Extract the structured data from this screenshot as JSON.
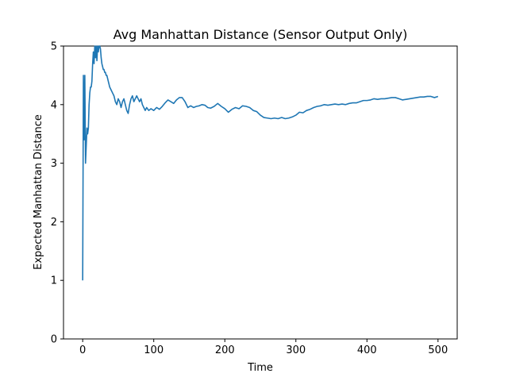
{
  "chart_data": {
    "type": "line",
    "title": "Avg Manhattan Distance (Sensor Output Only)",
    "xlabel": "Time",
    "ylabel": "Expected Manhattan Distance",
    "xlim": [
      -27,
      527
    ],
    "ylim": [
      0,
      5
    ],
    "xticks": [
      0,
      100,
      200,
      300,
      400,
      500
    ],
    "yticks": [
      0,
      1,
      2,
      3,
      4,
      5
    ],
    "grid": false,
    "line_color": "#1f77b4",
    "series": [
      {
        "values": [
          [
            0,
            1.0
          ],
          [
            1,
            4.5
          ],
          [
            2,
            3.4
          ],
          [
            3,
            4.5
          ],
          [
            4,
            3.0
          ],
          [
            5,
            3.3
          ],
          [
            6,
            3.6
          ],
          [
            7,
            3.5
          ],
          [
            8,
            3.6
          ],
          [
            9,
            4.0
          ],
          [
            10,
            4.2
          ],
          [
            11,
            4.3
          ],
          [
            12,
            4.3
          ],
          [
            13,
            4.4
          ],
          [
            14,
            4.7
          ],
          [
            15,
            4.9
          ],
          [
            16,
            4.7
          ],
          [
            17,
            5.0
          ],
          [
            18,
            4.8
          ],
          [
            19,
            5.0
          ],
          [
            20,
            4.75
          ],
          [
            21,
            5.0
          ],
          [
            22,
            4.9
          ],
          [
            23,
            5.0
          ],
          [
            24,
            5.0
          ],
          [
            25,
            4.95
          ],
          [
            26,
            4.8
          ],
          [
            27,
            4.7
          ],
          [
            28,
            4.65
          ],
          [
            29,
            4.6
          ],
          [
            30,
            4.6
          ],
          [
            31,
            4.55
          ],
          [
            32,
            4.55
          ],
          [
            33,
            4.5
          ],
          [
            34,
            4.5
          ],
          [
            35,
            4.45
          ],
          [
            36,
            4.4
          ],
          [
            37,
            4.35
          ],
          [
            38,
            4.3
          ],
          [
            40,
            4.25
          ],
          [
            42,
            4.2
          ],
          [
            44,
            4.15
          ],
          [
            46,
            4.05
          ],
          [
            48,
            4.0
          ],
          [
            50,
            4.1
          ],
          [
            52,
            4.05
          ],
          [
            54,
            3.95
          ],
          [
            56,
            4.05
          ],
          [
            58,
            4.1
          ],
          [
            60,
            4.0
          ],
          [
            62,
            3.9
          ],
          [
            64,
            3.85
          ],
          [
            66,
            4.0
          ],
          [
            68,
            4.1
          ],
          [
            70,
            4.15
          ],
          [
            72,
            4.05
          ],
          [
            74,
            4.1
          ],
          [
            76,
            4.15
          ],
          [
            78,
            4.1
          ],
          [
            80,
            4.05
          ],
          [
            82,
            4.1
          ],
          [
            84,
            4.0
          ],
          [
            86,
            3.95
          ],
          [
            88,
            3.9
          ],
          [
            90,
            3.95
          ],
          [
            93,
            3.9
          ],
          [
            96,
            3.93
          ],
          [
            100,
            3.9
          ],
          [
            104,
            3.95
          ],
          [
            108,
            3.92
          ],
          [
            112,
            3.97
          ],
          [
            116,
            4.03
          ],
          [
            120,
            4.08
          ],
          [
            124,
            4.05
          ],
          [
            128,
            4.02
          ],
          [
            132,
            4.08
          ],
          [
            136,
            4.12
          ],
          [
            140,
            4.12
          ],
          [
            144,
            4.05
          ],
          [
            148,
            3.95
          ],
          [
            152,
            3.98
          ],
          [
            156,
            3.95
          ],
          [
            160,
            3.97
          ],
          [
            164,
            3.98
          ],
          [
            168,
            4.0
          ],
          [
            172,
            3.99
          ],
          [
            176,
            3.95
          ],
          [
            180,
            3.94
          ],
          [
            185,
            3.97
          ],
          [
            190,
            4.02
          ],
          [
            195,
            3.97
          ],
          [
            200,
            3.93
          ],
          [
            205,
            3.87
          ],
          [
            210,
            3.92
          ],
          [
            215,
            3.95
          ],
          [
            220,
            3.93
          ],
          [
            225,
            3.98
          ],
          [
            230,
            3.97
          ],
          [
            235,
            3.95
          ],
          [
            240,
            3.9
          ],
          [
            245,
            3.88
          ],
          [
            250,
            3.82
          ],
          [
            255,
            3.78
          ],
          [
            260,
            3.77
          ],
          [
            265,
            3.76
          ],
          [
            270,
            3.77
          ],
          [
            275,
            3.76
          ],
          [
            280,
            3.78
          ],
          [
            285,
            3.76
          ],
          [
            290,
            3.77
          ],
          [
            295,
            3.79
          ],
          [
            300,
            3.82
          ],
          [
            305,
            3.87
          ],
          [
            310,
            3.86
          ],
          [
            315,
            3.9
          ],
          [
            320,
            3.92
          ],
          [
            325,
            3.95
          ],
          [
            330,
            3.97
          ],
          [
            335,
            3.98
          ],
          [
            340,
            4.0
          ],
          [
            345,
            3.99
          ],
          [
            350,
            4.0
          ],
          [
            355,
            4.01
          ],
          [
            360,
            4.0
          ],
          [
            365,
            4.01
          ],
          [
            370,
            4.0
          ],
          [
            375,
            4.02
          ],
          [
            380,
            4.03
          ],
          [
            385,
            4.03
          ],
          [
            390,
            4.05
          ],
          [
            395,
            4.07
          ],
          [
            400,
            4.07
          ],
          [
            405,
            4.08
          ],
          [
            410,
            4.1
          ],
          [
            415,
            4.09
          ],
          [
            420,
            4.1
          ],
          [
            425,
            4.1
          ],
          [
            430,
            4.11
          ],
          [
            435,
            4.12
          ],
          [
            440,
            4.12
          ],
          [
            445,
            4.1
          ],
          [
            450,
            4.08
          ],
          [
            455,
            4.09
          ],
          [
            460,
            4.1
          ],
          [
            465,
            4.11
          ],
          [
            470,
            4.12
          ],
          [
            475,
            4.13
          ],
          [
            480,
            4.13
          ],
          [
            485,
            4.14
          ],
          [
            490,
            4.14
          ],
          [
            495,
            4.12
          ],
          [
            500,
            4.14
          ]
        ]
      }
    ]
  }
}
